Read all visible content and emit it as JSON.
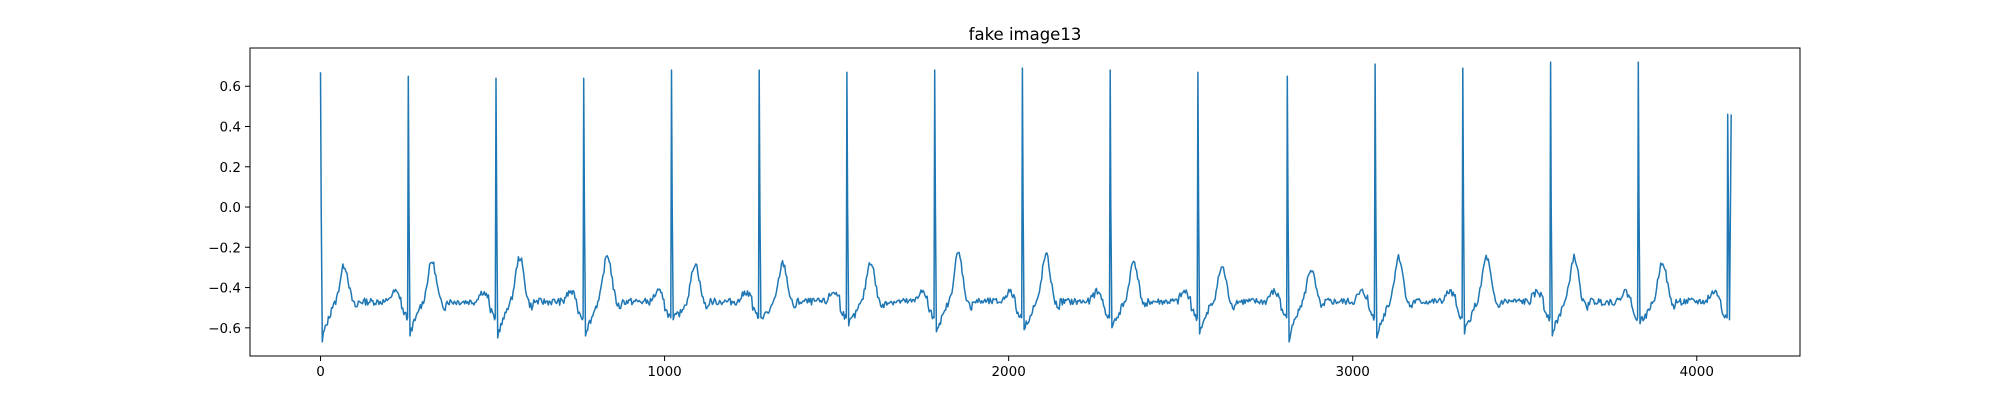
{
  "chart_data": {
    "type": "line",
    "title": "fake image13",
    "xlabel": "",
    "ylabel": "",
    "xlim": [
      -205,
      4300
    ],
    "ylim": [
      -0.74,
      0.79
    ],
    "xticks": [
      0,
      1000,
      2000,
      3000,
      4000
    ],
    "xtick_labels": [
      "0",
      "1000",
      "2000",
      "3000",
      "4000"
    ],
    "yticks": [
      0.6,
      0.4,
      0.2,
      0.0,
      -0.2,
      -0.4,
      -0.6
    ],
    "ytick_labels": [
      "0.6",
      "0.4",
      "0.2",
      "0.0",
      "−0.2",
      "−0.4",
      "−0.6"
    ],
    "grid": false,
    "line_color": "#1f77b4",
    "series": [
      {
        "beats": [
          {
            "r_x": 0,
            "r_y": 0.67,
            "s_y": -0.67,
            "t_y": -0.29
          },
          {
            "r_x": 255,
            "r_y": 0.65,
            "s_y": -0.64,
            "t_y": -0.27
          },
          {
            "r_x": 510,
            "r_y": 0.64,
            "s_y": -0.65,
            "t_y": -0.25
          },
          {
            "r_x": 765,
            "r_y": 0.64,
            "s_y": -0.64,
            "t_y": -0.24
          },
          {
            "r_x": 1020,
            "r_y": 0.68,
            "s_y": -0.56,
            "t_y": -0.28
          },
          {
            "r_x": 1275,
            "r_y": 0.68,
            "s_y": -0.55,
            "t_y": -0.28
          },
          {
            "r_x": 1530,
            "r_y": 0.67,
            "s_y": -0.59,
            "t_y": -0.27
          },
          {
            "r_x": 1785,
            "r_y": 0.68,
            "s_y": -0.62,
            "t_y": -0.23
          },
          {
            "r_x": 2040,
            "r_y": 0.69,
            "s_y": -0.61,
            "t_y": -0.24
          },
          {
            "r_x": 2295,
            "r_y": 0.68,
            "s_y": -0.6,
            "t_y": -0.27
          },
          {
            "r_x": 2550,
            "r_y": 0.67,
            "s_y": -0.63,
            "t_y": -0.3
          },
          {
            "r_x": 2810,
            "r_y": 0.65,
            "s_y": -0.67,
            "t_y": -0.31
          },
          {
            "r_x": 3065,
            "r_y": 0.71,
            "s_y": -0.65,
            "t_y": -0.25
          },
          {
            "r_x": 3320,
            "r_y": 0.69,
            "s_y": -0.63,
            "t_y": -0.25
          },
          {
            "r_x": 3575,
            "r_y": 0.72,
            "s_y": -0.64,
            "t_y": -0.25
          },
          {
            "r_x": 3830,
            "r_y": 0.72,
            "s_y": -0.58,
            "t_y": -0.27
          },
          {
            "r_x": 4090,
            "r_y": 0.46,
            "s_y": -0.56,
            "t_y": null
          }
        ],
        "baseline": -0.45
      }
    ]
  }
}
